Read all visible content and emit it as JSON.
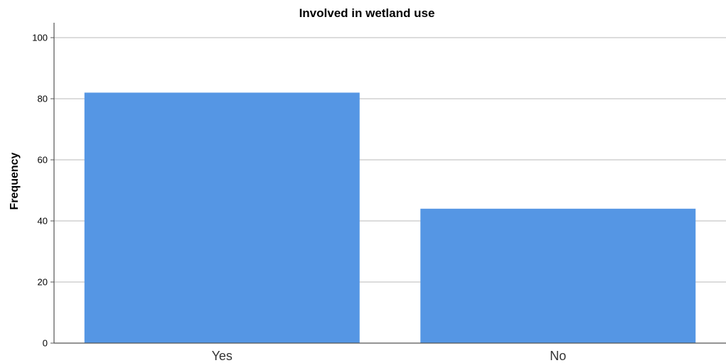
{
  "chart_data": {
    "type": "bar",
    "title": "Involved in wetland  use",
    "xlabel": "",
    "ylabel": "Frequency",
    "categories": [
      "Yes",
      "No"
    ],
    "values": [
      82,
      44
    ],
    "ylim": [
      0,
      100
    ],
    "yticks": [
      0,
      20,
      40,
      60,
      80,
      100
    ],
    "grid": "horizontal",
    "legend": "none",
    "bar_color": "#5596e4",
    "grid_color": "#c8c8c8",
    "axis_color": "#555555"
  }
}
